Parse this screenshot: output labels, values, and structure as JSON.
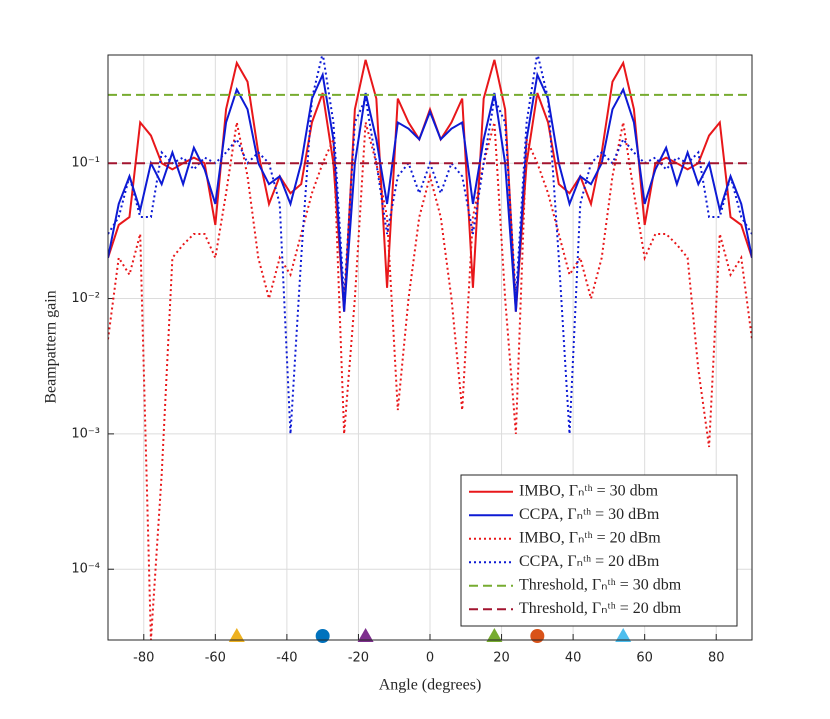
{
  "chart_data": {
    "type": "line",
    "xlabel": "Angle (degrees)",
    "ylabel": "Beampattern gain",
    "x": [
      -90,
      -87,
      -84,
      -81,
      -78,
      -75,
      -72,
      -69,
      -66,
      -63,
      -60,
      -57,
      -54,
      -51,
      -48,
      -45,
      -42,
      -39,
      -36,
      -33,
      -30,
      -27,
      -24,
      -21,
      -18,
      -15,
      -12,
      -9,
      -6,
      -3,
      0,
      3,
      6,
      9,
      12,
      15,
      18,
      21,
      24,
      27,
      30,
      33,
      36,
      39,
      42,
      45,
      48,
      51,
      54,
      57,
      60,
      63,
      66,
      69,
      72,
      75,
      78,
      81,
      84,
      87,
      90
    ],
    "xlim": [
      -90,
      90
    ],
    "xticks": [
      -80,
      -60,
      -40,
      -20,
      0,
      20,
      40,
      60,
      80
    ],
    "ylim": [
      3e-05,
      0.63
    ],
    "yscale": "log",
    "yticks": [
      {
        "value": 0.0001,
        "label": "10⁻⁴"
      },
      {
        "value": 0.001,
        "label": "10⁻³"
      },
      {
        "value": 0.01,
        "label": "10⁻²"
      },
      {
        "value": 0.1,
        "label": "10⁻¹"
      }
    ],
    "grid": true,
    "legend": "lower right",
    "series": [
      {
        "name": "IMBO, Γₙᵗʰ = 30 dbm",
        "color": "#e8171a",
        "dash": "solid",
        "values": [
          0.02,
          0.035,
          0.04,
          0.2,
          0.16,
          0.1,
          0.09,
          0.1,
          0.11,
          0.1,
          0.035,
          0.25,
          0.55,
          0.4,
          0.12,
          0.05,
          0.08,
          0.06,
          0.07,
          0.2,
          0.33,
          0.1,
          0.008,
          0.25,
          0.58,
          0.3,
          0.012,
          0.3,
          0.2,
          0.15,
          0.25,
          0.15,
          0.2,
          0.3,
          0.012,
          0.3,
          0.58,
          0.25,
          0.008,
          0.1,
          0.33,
          0.2,
          0.07,
          0.06,
          0.08,
          0.05,
          0.12,
          0.4,
          0.55,
          0.25,
          0.035,
          0.1,
          0.11,
          0.1,
          0.09,
          0.1,
          0.16,
          0.2,
          0.04,
          0.035,
          0.02
        ]
      },
      {
        "name": "CCPA, Γₙᵗʰ = 30 dBm",
        "color": "#0d1ad4",
        "dash": "solid",
        "values": [
          0.02,
          0.05,
          0.08,
          0.045,
          0.1,
          0.07,
          0.12,
          0.07,
          0.13,
          0.09,
          0.05,
          0.2,
          0.35,
          0.25,
          0.1,
          0.07,
          0.08,
          0.05,
          0.1,
          0.3,
          0.45,
          0.15,
          0.008,
          0.1,
          0.33,
          0.15,
          0.05,
          0.2,
          0.18,
          0.15,
          0.24,
          0.15,
          0.18,
          0.2,
          0.05,
          0.15,
          0.33,
          0.1,
          0.008,
          0.15,
          0.45,
          0.3,
          0.1,
          0.05,
          0.08,
          0.07,
          0.1,
          0.25,
          0.35,
          0.2,
          0.05,
          0.09,
          0.13,
          0.07,
          0.12,
          0.07,
          0.1,
          0.045,
          0.08,
          0.05,
          0.02
        ]
      },
      {
        "name": "IMBO, Γₙᵗʰ = 20 dBm",
        "color": "#e8171a",
        "dash": "dotted",
        "values": [
          0.005,
          0.02,
          0.015,
          0.03,
          3e-05,
          0.0005,
          0.02,
          0.025,
          0.03,
          0.03,
          0.02,
          0.06,
          0.2,
          0.08,
          0.02,
          0.01,
          0.02,
          0.015,
          0.03,
          0.06,
          0.1,
          0.15,
          0.001,
          0.01,
          0.2,
          0.1,
          0.04,
          0.0015,
          0.01,
          0.04,
          0.08,
          0.04,
          0.01,
          0.0015,
          0.04,
          0.1,
          0.2,
          0.01,
          0.001,
          0.15,
          0.1,
          0.06,
          0.03,
          0.015,
          0.02,
          0.01,
          0.02,
          0.08,
          0.2,
          0.06,
          0.02,
          0.03,
          0.03,
          0.025,
          0.02,
          0.003,
          0.0008,
          0.03,
          0.015,
          0.02,
          0.005
        ]
      },
      {
        "name": "CCPA, Γₙᵗʰ = 20 dBm",
        "color": "#0d1ad4",
        "dash": "dotted",
        "values": [
          0.03,
          0.04,
          0.08,
          0.04,
          0.04,
          0.12,
          0.1,
          0.11,
          0.09,
          0.11,
          0.1,
          0.12,
          0.15,
          0.1,
          0.12,
          0.1,
          0.05,
          0.001,
          0.02,
          0.3,
          0.65,
          0.2,
          0.01,
          0.2,
          0.3,
          0.1,
          0.03,
          0.08,
          0.1,
          0.06,
          0.1,
          0.06,
          0.1,
          0.08,
          0.03,
          0.1,
          0.3,
          0.2,
          0.01,
          0.2,
          0.65,
          0.3,
          0.02,
          0.001,
          0.05,
          0.1,
          0.12,
          0.1,
          0.15,
          0.12,
          0.1,
          0.11,
          0.09,
          0.11,
          0.1,
          0.12,
          0.04,
          0.04,
          0.08,
          0.04,
          0.03
        ]
      },
      {
        "name": "Threshold, Γₙᵗʰ = 30 dbm",
        "color": "#77ac30",
        "dash": "dashed",
        "x": [
          -90,
          90
        ],
        "values": [
          0.32,
          0.32
        ]
      },
      {
        "name": "Threshold, Γₙᵗʰ = 20 dbm",
        "color": "#a2142f",
        "dash": "dashed",
        "x": [
          -90,
          90
        ],
        "values": [
          0.1,
          0.1
        ]
      }
    ],
    "markers": [
      {
        "x": -54,
        "color": "#edb120",
        "shape": "triangle"
      },
      {
        "x": -30,
        "color": "#0072bd",
        "shape": "circle"
      },
      {
        "x": -18,
        "color": "#7e2f8e",
        "shape": "triangle"
      },
      {
        "x": 18,
        "color": "#77ac30",
        "shape": "triangle"
      },
      {
        "x": 30,
        "color": "#d95319",
        "shape": "circle"
      },
      {
        "x": 54,
        "color": "#4dbeee",
        "shape": "triangle"
      }
    ]
  }
}
